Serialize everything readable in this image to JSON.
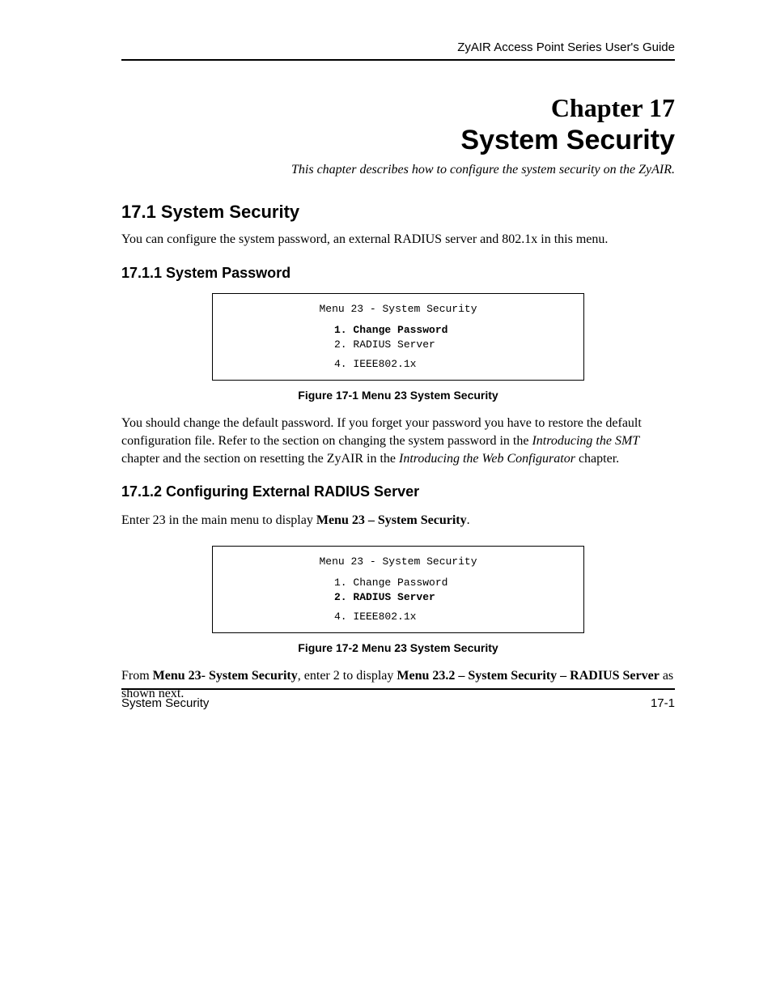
{
  "header": {
    "guide_title": "ZyAIR Access Point Series User's Guide"
  },
  "chapter": {
    "number": "Chapter 17",
    "title": "System Security",
    "intro": "This chapter describes how to configure the system security on the ZyAIR."
  },
  "section_1": {
    "heading": "17.1  System Security",
    "paragraph": "You can configure the system password, an external RADIUS server and 802.1x in this menu."
  },
  "section_1_1": {
    "heading": "17.1.1 System Password",
    "menu_box": {
      "title": "Menu 23 - System Security",
      "items": [
        {
          "text": "1. Change Password",
          "bold": true
        },
        {
          "text": "2. RADIUS Server",
          "bold": false
        },
        {
          "text": "4. IEEE802.1x",
          "bold": false,
          "gap": true
        }
      ],
      "border_color": "#000000",
      "background_color": "#ffffff",
      "font_family": "Courier New",
      "font_size_pt": 10
    },
    "figure_caption": "Figure 17-1 Menu 23 System Security",
    "paragraph_parts": {
      "p1": "You should change the default password. If you forget your password you have to restore the default configuration file. Refer to the section on changing the system password in the ",
      "italic1": "Introducing the SMT",
      "p2": " chapter and the section on resetting the ZyAIR in the ",
      "italic2": "Introducing the Web Configurator",
      "p3": " chapter."
    }
  },
  "section_1_2": {
    "heading": "17.1.2 Configuring External RADIUS Server",
    "paragraph_parts": {
      "p1": "Enter 23 in the main menu to display ",
      "bold1": "Menu 23 – System Security",
      "p2": "."
    },
    "menu_box": {
      "title": "Menu 23 - System Security",
      "items": [
        {
          "text": "1. Change Password",
          "bold": false
        },
        {
          "text": "2. RADIUS Server",
          "bold": true
        },
        {
          "text": "4. IEEE802.1x",
          "bold": false,
          "gap": true
        }
      ],
      "border_color": "#000000",
      "background_color": "#ffffff",
      "font_family": "Courier New",
      "font_size_pt": 10
    },
    "figure_caption": "Figure 17-2 Menu 23 System Security",
    "paragraph2_parts": {
      "p1": "From ",
      "bold1": "Menu 23- System Security",
      "p2": ", enter 2 to display ",
      "bold2": "Menu 23.2 – System Security – RADIUS Server",
      "p3": " as shown next."
    }
  },
  "footer": {
    "left": "System Security",
    "right": "17-1"
  },
  "styling": {
    "page_background": "#ffffff",
    "text_color": "#000000",
    "rule_color": "#000000",
    "body_font": "Times New Roman",
    "heading_font": "Arial",
    "mono_font": "Courier New"
  }
}
